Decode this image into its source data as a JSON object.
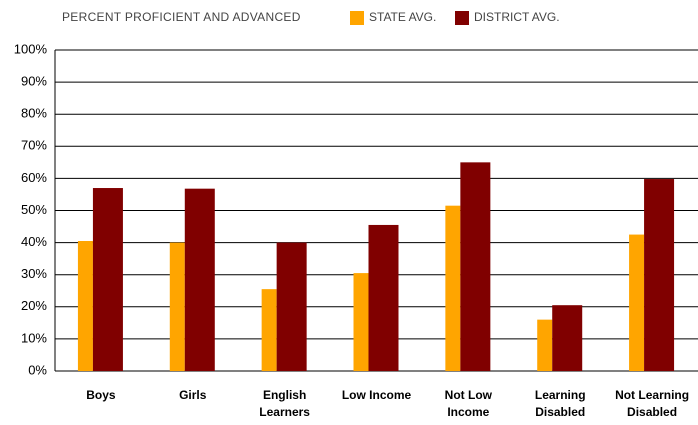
{
  "chart_data": {
    "type": "bar",
    "title": "PERCENT  PROFICIENT AND ADVANCED",
    "categories": [
      "Boys",
      "Girls",
      "English Learners",
      "Low Income",
      "Not Low Income",
      "Learning Disabled",
      "Not Learning Disabled"
    ],
    "series": [
      {
        "name": "STATE AVG.",
        "color": "#ffa500",
        "values": [
          40.5,
          40,
          25.5,
          30.5,
          51.5,
          16,
          42.5
        ]
      },
      {
        "name": "DISTRICT AVG.",
        "color": "#800000",
        "values": [
          57,
          56.8,
          40,
          45.5,
          65,
          20.5,
          59.8
        ]
      }
    ],
    "ylim": [
      0,
      100
    ],
    "yticks": [
      {
        "value": 0,
        "label": "0%"
      },
      {
        "value": 10,
        "label": "10%"
      },
      {
        "value": 20,
        "label": "20%"
      },
      {
        "value": 30,
        "label": "30%"
      },
      {
        "value": 40,
        "label": "40%"
      },
      {
        "value": 50,
        "label": "50%"
      },
      {
        "value": 60,
        "label": "60%"
      },
      {
        "value": 70,
        "label": "70%"
      },
      {
        "value": 80,
        "label": "80%"
      },
      {
        "value": 90,
        "label": "90%"
      },
      {
        "value": 100,
        "label": "100%"
      }
    ],
    "grid": true
  }
}
